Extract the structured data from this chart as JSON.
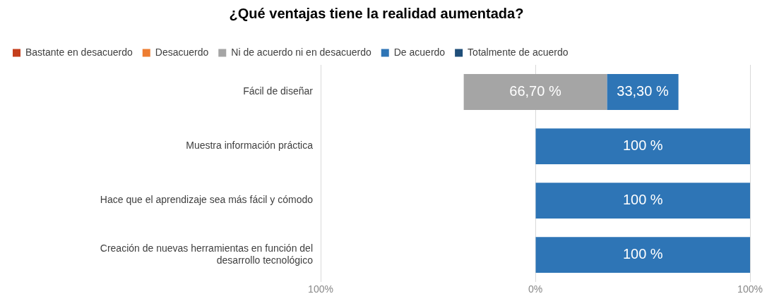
{
  "chart_data": {
    "type": "bar",
    "orientation": "horizontal",
    "title": "¿Qué ventajas tiene la realidad aumentada?",
    "categories": [
      "Fácil de diseñar",
      "Muestra información práctica",
      "Hace que el aprendizaje sea más fácil y cómodo",
      "Creación de nuevas herramientas en función del desarrollo tecnológico"
    ],
    "series": [
      {
        "name": "Bastante en desacuerdo",
        "color": "#c43e1c",
        "values": [
          null,
          null,
          null,
          null
        ]
      },
      {
        "name": "Desacuerdo",
        "color": "#ed7d31",
        "values": [
          null,
          null,
          null,
          null
        ]
      },
      {
        "name": "Ni de acuerdo ni en desacuerdo",
        "color": "#a5a5a5",
        "values": [
          66.7,
          null,
          null,
          null
        ],
        "base": [
          -33.35,
          null,
          null,
          null
        ],
        "value_labels": [
          "66,70 %",
          null,
          null,
          null
        ]
      },
      {
        "name": "De acuerdo",
        "color": "#2e75b6",
        "values": [
          33.3,
          100,
          100,
          100
        ],
        "base": [
          33.35,
          0,
          0,
          0
        ],
        "value_labels": [
          "33,30 %",
          "100 %",
          "100 %",
          "100 %"
        ]
      },
      {
        "name": "Totalmente de acuerdo",
        "color": "#1f4e79",
        "values": [
          null,
          null,
          null,
          null
        ]
      }
    ],
    "xlim": [
      -100,
      100
    ],
    "xticks": [
      {
        "value": -100,
        "label": "100%"
      },
      {
        "value": 0,
        "label": "0%"
      },
      {
        "value": 100,
        "label": "100%"
      }
    ],
    "grid": "x",
    "legend": "top left"
  }
}
